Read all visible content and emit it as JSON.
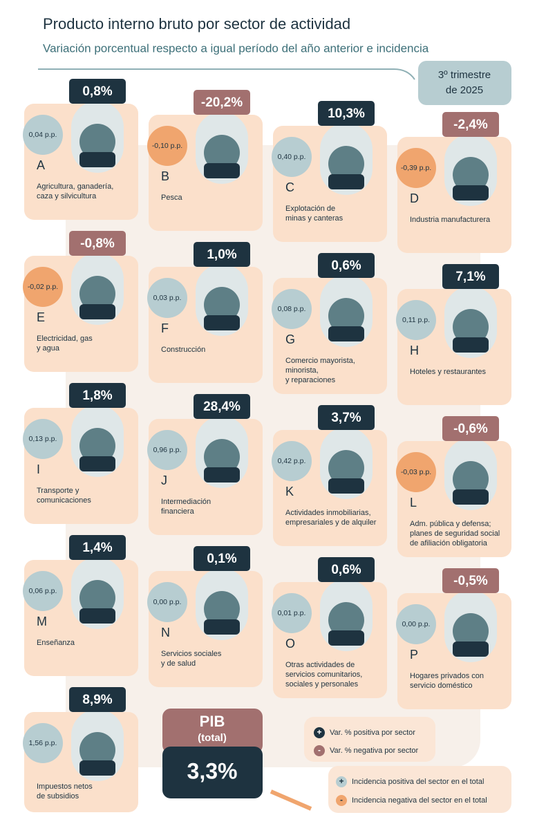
{
  "header": {
    "title": "Producto interno bruto por sector de actividad",
    "subtitle": "Variación porcentual respecto a igual período del año anterior e incidencia",
    "period": [
      "3º trimestre",
      "de 2025"
    ]
  },
  "sectors": [
    {
      "letter": "A",
      "variation": "0,8%",
      "incidence": "0,04 p.p.",
      "name": [
        "Agricultura, ganadería,",
        "caza y silvicultura"
      ],
      "variation_color": "#1e3340",
      "incidence_color": "#b7cdd1"
    },
    {
      "letter": "B",
      "variation": "-20,2%",
      "incidence": "-0,10 p.p.",
      "name": [
        "Pesca"
      ],
      "variation_color": "#a2706f",
      "incidence_color": "#f0a56e"
    },
    {
      "letter": "C",
      "variation": "10,3%",
      "incidence": "0,40 p.p.",
      "name": [
        "Explotación de",
        "minas y canteras"
      ],
      "variation_color": "#1e3340",
      "incidence_color": "#b7cdd1"
    },
    {
      "letter": "D",
      "variation": "-2,4%",
      "incidence": "-0,39 p.p.",
      "name": [
        "Industria manufacturera"
      ],
      "variation_color": "#a2706f",
      "incidence_color": "#f0a56e"
    },
    {
      "letter": "E",
      "variation": "-0,8%",
      "incidence": "-0,02 p.p.",
      "name": [
        "Electricidad, gas",
        "y agua"
      ],
      "variation_color": "#a2706f",
      "incidence_color": "#f0a56e"
    },
    {
      "letter": "F",
      "variation": "1,0%",
      "incidence": "0,03 p.p.",
      "name": [
        "Construcción"
      ],
      "variation_color": "#1e3340",
      "incidence_color": "#b7cdd1"
    },
    {
      "letter": "G",
      "variation": "0,6%",
      "incidence": "0,08 p.p.",
      "name": [
        "Comercio mayorista,",
        "minorista,",
        "y reparaciones"
      ],
      "variation_color": "#1e3340",
      "incidence_color": "#b7cdd1"
    },
    {
      "letter": "H",
      "variation": "7,1%",
      "incidence": "0,11 p.p.",
      "name": [
        "Hoteles y restaurantes"
      ],
      "variation_color": "#1e3340",
      "incidence_color": "#b7cdd1"
    },
    {
      "letter": "I",
      "variation": "1,8%",
      "incidence": "0,13 p.p.",
      "name": [
        "Transporte y",
        "comunicaciones"
      ],
      "variation_color": "#1e3340",
      "incidence_color": "#b7cdd1"
    },
    {
      "letter": "J",
      "variation": "28,4%",
      "incidence": "0,96 p.p.",
      "name": [
        "Intermediación",
        "financiera"
      ],
      "variation_color": "#1e3340",
      "incidence_color": "#b7cdd1"
    },
    {
      "letter": "K",
      "variation": "3,7%",
      "incidence": "0,42 p.p.",
      "name": [
        "Actividades inmobiliarias,",
        "empresariales y de alquiler"
      ],
      "variation_color": "#1e3340",
      "incidence_color": "#b7cdd1"
    },
    {
      "letter": "L",
      "variation": "-0,6%",
      "incidence": "-0,03 p.p.",
      "name": [
        "Adm. pública y defensa;",
        "planes de seguridad social",
        "de afiliación obligatoria"
      ],
      "variation_color": "#a2706f",
      "incidence_color": "#f0a56e"
    },
    {
      "letter": "M",
      "variation": "1,4%",
      "incidence": "0,06 p.p.",
      "name": [
        "Enseñanza"
      ],
      "variation_color": "#1e3340",
      "incidence_color": "#b7cdd1"
    },
    {
      "letter": "N",
      "variation": "0,1%",
      "incidence": "0,00 p.p.",
      "name": [
        "Servicios sociales",
        "y de salud"
      ],
      "variation_color": "#1e3340",
      "incidence_color": "#b7cdd1"
    },
    {
      "letter": "O",
      "variation": "0,6%",
      "incidence": "0,01 p.p.",
      "name": [
        "Otras actividades de",
        "servicios comunitarios,",
        "sociales y personales"
      ],
      "variation_color": "#1e3340",
      "incidence_color": "#b7cdd1"
    },
    {
      "letter": "P",
      "variation": "-0,5%",
      "incidence": "0,00 p.p.",
      "name": [
        "Hogares privados con",
        "servicio doméstico"
      ],
      "variation_color": "#a2706f",
      "incidence_color": "#b7cdd1"
    },
    {
      "variation": "8,9%",
      "incidence": "1,56 p.p.",
      "name": [
        "Impuestos netos",
        "de subsidios"
      ],
      "variation_color": "#1e3340",
      "incidence_color": "#b7cdd1"
    }
  ],
  "total": {
    "title": "PIB",
    "subtitle": "(total)",
    "value": "3,3%"
  },
  "legend": [
    {
      "symbol": "+",
      "label": "Var. % positiva por sector",
      "color": "#1e3340"
    },
    {
      "symbol": "-",
      "label": "Var. % negativa por sector",
      "color": "#a2706f"
    },
    {
      "symbol": "+",
      "label": "Incidencia positiva del sector en el total",
      "color": "#b7cdd1"
    },
    {
      "symbol": "-",
      "label": "Incidencia negativa del sector en el total",
      "color": "#f0a56e"
    }
  ]
}
